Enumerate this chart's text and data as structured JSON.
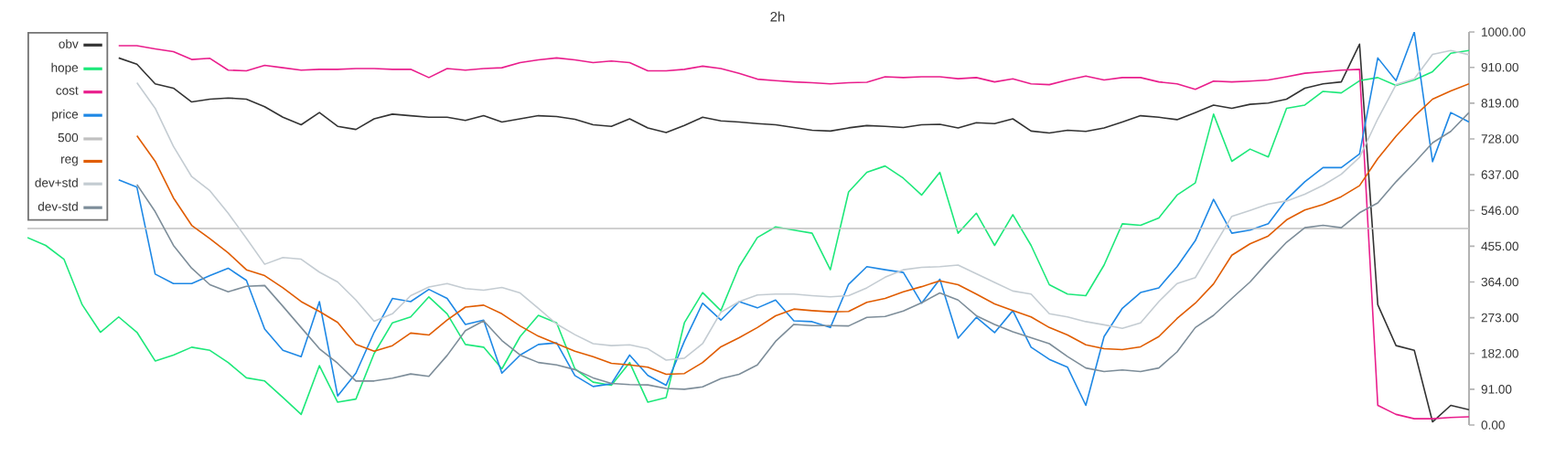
{
  "chart_data": {
    "type": "line",
    "title": "2h",
    "categories": [
      null,
      null,
      null,
      null,
      null,
      null,
      null,
      null,
      null,
      null,
      null,
      null,
      null,
      null,
      null,
      null,
      null,
      null,
      null,
      null,
      null,
      null,
      null,
      null,
      null,
      null,
      null,
      null,
      null,
      null,
      null,
      null,
      null,
      null,
      null,
      null,
      null,
      null,
      null,
      null,
      null,
      null,
      null,
      null,
      null,
      null,
      null,
      null,
      null,
      null,
      null,
      null,
      null,
      null,
      null,
      null,
      null,
      null,
      null,
      null,
      null,
      null,
      null,
      null,
      null,
      null,
      null,
      null,
      null,
      null,
      null,
      null,
      null,
      null,
      null,
      null,
      null,
      null,
      null,
      null
    ],
    "ylim": [
      0,
      1000
    ],
    "yticks": [
      {
        "value": 0,
        "label": "0.00"
      },
      {
        "value": 91,
        "label": "91.00"
      },
      {
        "value": 182,
        "label": "182.00"
      },
      {
        "value": 273,
        "label": "273.00"
      },
      {
        "value": 364,
        "label": "364.00"
      },
      {
        "value": 455,
        "label": "455.00"
      },
      {
        "value": 546,
        "label": "546.00"
      },
      {
        "value": 637,
        "label": "637.00"
      },
      {
        "value": 728,
        "label": "728.00"
      },
      {
        "value": 819,
        "label": "819.00"
      },
      {
        "value": 910,
        "label": "910.00"
      },
      {
        "value": 1000,
        "label": "1000.00"
      }
    ],
    "tick_labels": "y",
    "legend": "top left",
    "series": [
      {
        "name": "obv",
        "color": "#333333",
        "values": [
          null,
          null,
          null,
          null,
          null,
          934,
          918,
          868,
          857,
          822,
          829,
          832,
          829,
          810,
          783,
          764,
          795,
          760,
          752,
          779,
          791,
          787,
          783,
          783,
          775,
          787,
          771,
          779,
          787,
          785,
          778,
          764,
          760,
          779,
          756,
          744,
          762,
          783,
          774,
          771,
          767,
          764,
          757,
          750,
          748,
          756,
          762,
          760,
          757,
          764,
          765,
          756,
          769,
          767,
          779,
          748,
          743,
          750,
          747,
          756,
          771,
          787,
          783,
          777,
          795,
          814,
          806,
          816,
          819,
          829,
          857,
          868,
          873,
          969,
          306,
          202,
          190,
          8,
          50,
          39
        ]
      },
      {
        "name": "hope",
        "color": "#1de87a",
        "values": [
          477,
          457,
          422,
          306,
          236,
          275,
          236,
          163,
          178,
          198,
          190,
          159,
          120,
          112,
          70,
          27,
          151,
          58,
          66,
          182,
          260,
          275,
          326,
          283,
          205,
          198,
          143,
          225,
          279,
          260,
          143,
          109,
          101,
          159,
          58,
          70,
          260,
          337,
          291,
          403,
          477,
          504,
          496,
          488,
          395,
          593,
          643,
          659,
          628,
          585,
          643,
          488,
          539,
          457,
          535,
          457,
          357,
          333,
          329,
          407,
          512,
          508,
          527,
          585,
          616,
          791,
          671,
          702,
          682,
          806,
          814,
          849,
          845,
          876,
          884,
          864,
          878,
          899,
          946,
          953
        ]
      },
      {
        "name": "cost",
        "color": "#e91e8c",
        "values": [
          null,
          null,
          null,
          null,
          null,
          965,
          965,
          957,
          950,
          930,
          933,
          903,
          901,
          915,
          909,
          903,
          905,
          905,
          907,
          907,
          905,
          905,
          884,
          907,
          903,
          907,
          909,
          922,
          929,
          934,
          929,
          922,
          926,
          922,
          901,
          901,
          905,
          913,
          907,
          895,
          880,
          876,
          873,
          871,
          868,
          871,
          872,
          886,
          884,
          886,
          886,
          881,
          884,
          873,
          881,
          868,
          866,
          878,
          888,
          878,
          884,
          884,
          873,
          868,
          854,
          875,
          873,
          875,
          878,
          886,
          895,
          899,
          903,
          905,
          50,
          27,
          16,
          16,
          19,
          21
        ]
      },
      {
        "name": "price",
        "color": "#1e88e5",
        "values": [
          null,
          null,
          null,
          null,
          null,
          624,
          605,
          384,
          360,
          360,
          380,
          399,
          368,
          244,
          190,
          174,
          314,
          74,
          132,
          236,
          322,
          314,
          345,
          322,
          256,
          267,
          132,
          178,
          205,
          209,
          126,
          98,
          105,
          178,
          126,
          101,
          213,
          310,
          267,
          314,
          298,
          318,
          265,
          263,
          248,
          358,
          403,
          395,
          388,
          310,
          371,
          221,
          274,
          235,
          291,
          198,
          167,
          147,
          50,
          225,
          297,
          337,
          349,
          403,
          469,
          574,
          488,
          496,
          512,
          574,
          619,
          655,
          655,
          690,
          934,
          876,
          1000,
          670,
          795,
          771
        ]
      },
      {
        "name": "500",
        "color": "#c0c0c0",
        "values": [
          500,
          500,
          500,
          500,
          500,
          500,
          500,
          500,
          500,
          500,
          500,
          500,
          500,
          500,
          500,
          500,
          500,
          500,
          500,
          500,
          500,
          500,
          500,
          500,
          500,
          500,
          500,
          500,
          500,
          500,
          500,
          500,
          500,
          500,
          500,
          500,
          500,
          500,
          500,
          500,
          500,
          500,
          500,
          500,
          500,
          500,
          500,
          500,
          500,
          500,
          500,
          500,
          500,
          500,
          500,
          500,
          500,
          500,
          500,
          500,
          500,
          500,
          500,
          500,
          500,
          500,
          500,
          500,
          500,
          500,
          500,
          500,
          500,
          500,
          500,
          500,
          500,
          500,
          500,
          500
        ]
      },
      {
        "name": "reg",
        "color": "#e05c00",
        "values": [
          null,
          null,
          null,
          null,
          null,
          null,
          736,
          671,
          578,
          508,
          474,
          438,
          395,
          380,
          349,
          314,
          289,
          261,
          205,
          188,
          202,
          234,
          229,
          267,
          300,
          305,
          283,
          252,
          226,
          207,
          188,
          174,
          157,
          153,
          147,
          129,
          131,
          159,
          199,
          222,
          248,
          278,
          295,
          291,
          288,
          289,
          312,
          322,
          339,
          352,
          367,
          357,
          333,
          308,
          291,
          275,
          248,
          229,
          204,
          194,
          192,
          199,
          225,
          271,
          310,
          359,
          432,
          461,
          481,
          522,
          547,
          561,
          581,
          609,
          678,
          735,
          785,
          829,
          850,
          868
        ]
      },
      {
        "name": "dev+std",
        "color": "#c4ccd2",
        "values": [
          null,
          null,
          null,
          null,
          null,
          null,
          871,
          806,
          709,
          632,
          596,
          539,
          475,
          409,
          426,
          422,
          389,
          364,
          318,
          264,
          283,
          329,
          351,
          360,
          347,
          343,
          350,
          336,
          297,
          257,
          230,
          207,
          202,
          204,
          194,
          165,
          170,
          207,
          287,
          314,
          331,
          333,
          333,
          329,
          326,
          329,
          349,
          376,
          395,
          401,
          403,
          407,
          385,
          363,
          341,
          333,
          283,
          275,
          263,
          255,
          246,
          260,
          314,
          360,
          375,
          453,
          531,
          546,
          562,
          570,
          587,
          610,
          638,
          681,
          779,
          866,
          881,
          943,
          953,
          942
        ]
      },
      {
        "name": "dev-std",
        "color": "#7d8d99",
        "values": [
          null,
          null,
          null,
          null,
          null,
          null,
          612,
          543,
          457,
          399,
          357,
          339,
          353,
          355,
          302,
          248,
          194,
          157,
          112,
          112,
          119,
          130,
          124,
          177,
          240,
          265,
          215,
          178,
          159,
          153,
          141,
          120,
          106,
          103,
          102,
          93,
          91,
          97,
          118,
          129,
          153,
          213,
          256,
          253,
          253,
          252,
          274,
          276,
          290,
          311,
          336,
          318,
          278,
          256,
          237,
          222,
          207,
          174,
          145,
          136,
          140,
          136,
          145,
          186,
          248,
          279,
          322,
          364,
          416,
          465,
          502,
          508,
          502,
          540,
          565,
          619,
          667,
          718,
          747,
          795
        ]
      }
    ]
  }
}
